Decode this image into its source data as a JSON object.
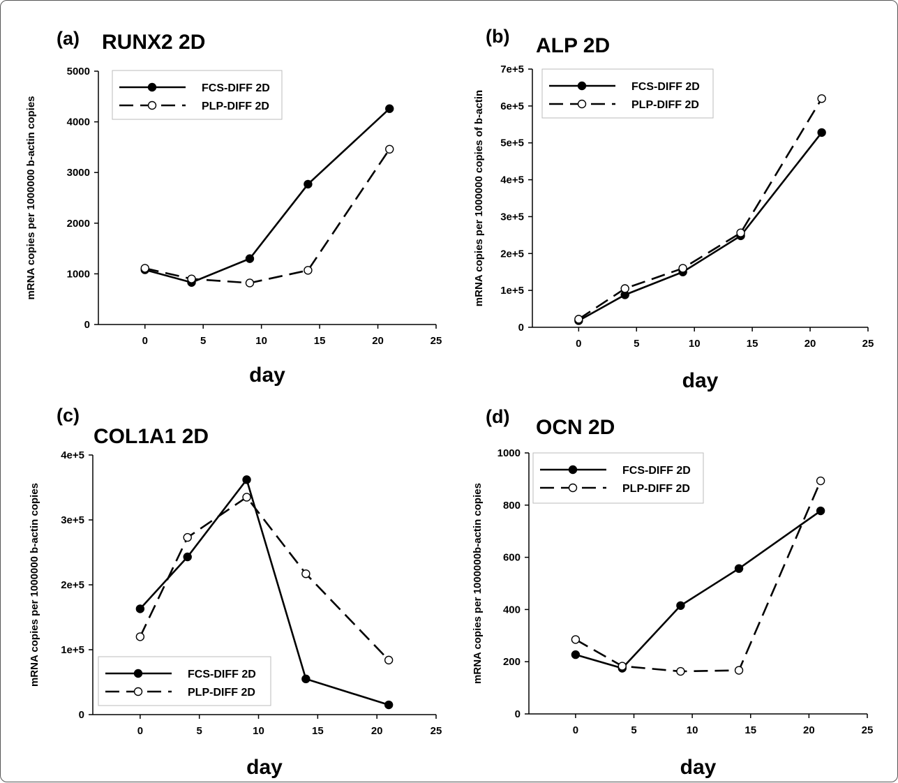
{
  "chart_data": [
    {
      "type": "line",
      "panel_label": "(a)",
      "title": "RUNX2 2D",
      "xlabel": "day",
      "ylabel": "mRNA copies per 1000000 b-actin copies",
      "xlim": [
        -4,
        25
      ],
      "ylim": [
        0,
        5000
      ],
      "x_ticks": [
        0,
        5,
        10,
        15,
        20,
        25
      ],
      "y_ticks": [
        0,
        1000,
        2000,
        3000,
        4000,
        5000
      ],
      "y_tick_labels": [
        "0",
        "1000",
        "2000",
        "3000",
        "4000",
        "5000"
      ],
      "legend_position": "top-left",
      "grid": false,
      "x": [
        0,
        4,
        9,
        14,
        21
      ],
      "series": [
        {
          "name": "FCS-DIFF 2D",
          "style": "solid",
          "marker": "filled-circle",
          "values": [
            1080,
            830,
            1300,
            2770,
            4260
          ]
        },
        {
          "name": "PLP-DIFF 2D",
          "style": "dashed",
          "marker": "open-circle",
          "values": [
            1110,
            900,
            820,
            1070,
            3460
          ]
        }
      ]
    },
    {
      "type": "line",
      "panel_label": "(b)",
      "title": "ALP 2D",
      "xlabel": "day",
      "ylabel": "mRNA copies per 1000000 copies of b-actin",
      "xlim": [
        -4,
        25
      ],
      "ylim": [
        0,
        700000
      ],
      "x_ticks": [
        0,
        5,
        10,
        15,
        20,
        25
      ],
      "y_ticks": [
        0,
        100000,
        200000,
        300000,
        400000,
        500000,
        600000,
        700000
      ],
      "y_tick_labels": [
        "0",
        "1e+5",
        "2e+5",
        "3e+5",
        "4e+5",
        "5e+5",
        "6e+5",
        "7e+5"
      ],
      "legend_position": "top-left",
      "grid": false,
      "x": [
        0,
        4,
        9,
        14,
        21
      ],
      "series": [
        {
          "name": "FCS-DIFF 2D",
          "style": "solid",
          "marker": "filled-circle",
          "values": [
            18000,
            88000,
            150000,
            248000,
            528000
          ]
        },
        {
          "name": "PLP-DIFF 2D",
          "style": "dashed",
          "marker": "open-circle",
          "values": [
            22000,
            105000,
            160000,
            256000,
            620000
          ]
        }
      ]
    },
    {
      "type": "line",
      "panel_label": "(c)",
      "title": "COL1A1 2D",
      "xlabel": "day",
      "ylabel": "mRNA copies per 1000000 b-actin copies",
      "xlim": [
        -4,
        25
      ],
      "ylim": [
        0,
        400000
      ],
      "x_ticks": [
        0,
        5,
        10,
        15,
        20,
        25
      ],
      "y_ticks": [
        0,
        100000,
        200000,
        300000,
        400000
      ],
      "y_tick_labels": [
        "0",
        "1e+5",
        "2e+5",
        "3e+5",
        "4e+5"
      ],
      "legend_position": "bottom-left",
      "grid": false,
      "x": [
        0,
        4,
        9,
        14,
        21
      ],
      "series": [
        {
          "name": "FCS-DIFF 2D",
          "style": "solid",
          "marker": "filled-circle",
          "values": [
            163000,
            243000,
            362000,
            55000,
            15000
          ]
        },
        {
          "name": "PLP-DIFF 2D",
          "style": "dashed",
          "marker": "open-circle",
          "values": [
            120000,
            273000,
            335000,
            217000,
            84000
          ]
        }
      ]
    },
    {
      "type": "line",
      "panel_label": "(d)",
      "title": "OCN 2D",
      "xlabel": "day",
      "ylabel": "mRNA copies per 1000000b-actin copies",
      "xlim": [
        -4,
        25
      ],
      "ylim": [
        0,
        1000
      ],
      "x_ticks": [
        0,
        5,
        10,
        15,
        20,
        25
      ],
      "y_ticks": [
        0,
        200,
        400,
        600,
        800,
        1000
      ],
      "y_tick_labels": [
        "0",
        "200",
        "400",
        "600",
        "800",
        "1000"
      ],
      "legend_position": "top-left",
      "grid": false,
      "x": [
        0,
        4,
        9,
        14,
        21
      ],
      "series": [
        {
          "name": "FCS-DIFF 2D",
          "style": "solid",
          "marker": "filled-circle",
          "values": [
            227,
            175,
            415,
            557,
            778
          ]
        },
        {
          "name": "PLP-DIFF 2D",
          "style": "dashed",
          "marker": "open-circle",
          "values": [
            285,
            183,
            163,
            167,
            893
          ]
        }
      ]
    }
  ]
}
